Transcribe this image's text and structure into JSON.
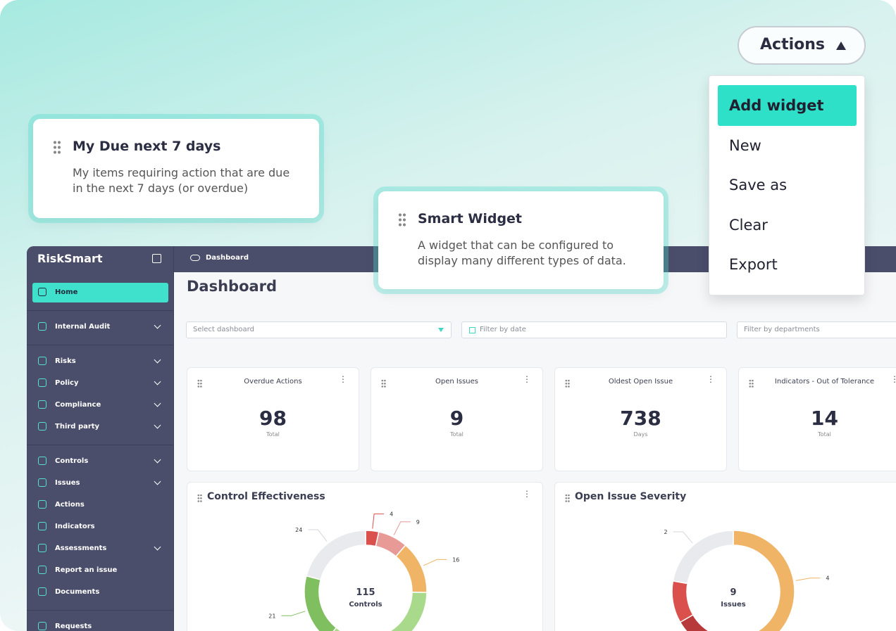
{
  "actions_button": "Actions",
  "actions_menu": {
    "items": [
      "Add widget",
      "New",
      "Save as",
      "Clear",
      "Export"
    ],
    "highlighted": 0
  },
  "widget_cards": [
    {
      "title": "My Due next 7 days",
      "description": "My items requiring action that are due in the next 7 days (or overdue)"
    },
    {
      "title": "Smart Widget",
      "description": "A widget that can be configured to display many different types of data."
    }
  ],
  "app": {
    "brand": "RiskSmart",
    "breadcrumb": "Dashboard",
    "page_title": "Dashboard",
    "nav": [
      [
        {
          "label": "Home",
          "active": true,
          "chevron": false
        }
      ],
      [
        {
          "label": "Internal Audit",
          "active": false,
          "chevron": true
        }
      ],
      [
        {
          "label": "Risks",
          "active": false,
          "chevron": true
        },
        {
          "label": "Policy",
          "active": false,
          "chevron": true
        },
        {
          "label": "Compliance",
          "active": false,
          "chevron": true
        },
        {
          "label": "Third party",
          "active": false,
          "chevron": true
        }
      ],
      [
        {
          "label": "Controls",
          "active": false,
          "chevron": true
        },
        {
          "label": "Issues",
          "active": false,
          "chevron": true
        },
        {
          "label": "Actions",
          "active": false,
          "chevron": false
        },
        {
          "label": "Indicators",
          "active": false,
          "chevron": false
        },
        {
          "label": "Assessments",
          "active": false,
          "chevron": true
        },
        {
          "label": "Report an issue",
          "active": false,
          "chevron": false
        },
        {
          "label": "Documents",
          "active": false,
          "chevron": false
        }
      ],
      [
        {
          "label": "Requests",
          "active": false,
          "chevron": false
        }
      ]
    ],
    "filters": [
      "Select dashboard",
      "Filter by date",
      "Filter by departments"
    ],
    "stat_cards": [
      {
        "title": "Overdue Actions",
        "value": 98,
        "unit": "Total"
      },
      {
        "title": "Open Issues",
        "value": 9,
        "unit": "Total"
      },
      {
        "title": "Oldest Open Issue",
        "value": 738,
        "unit": "Days"
      },
      {
        "title": "Indicators - Out of Tolerance",
        "value": 14,
        "unit": "Total"
      }
    ],
    "charts": [
      {
        "type": "donut",
        "title": "Control Effectiveness",
        "center_value": 115,
        "center_label": "Controls",
        "values": [
          4,
          9,
          16,
          41,
          21,
          24
        ],
        "value_labels": [
          "4",
          "9",
          "16",
          null,
          "21",
          "24"
        ],
        "colors": [
          "#d9504c",
          "#e89a96",
          "#f0b466",
          "#a9da8b",
          "#7fbf5f",
          "#e9eaed"
        ]
      },
      {
        "type": "donut",
        "title": "Open Issue Severity",
        "center_value": 9,
        "center_label": "Issues",
        "values": [
          4,
          2,
          1,
          2
        ],
        "value_labels": [
          "4",
          null,
          null,
          "2"
        ],
        "colors": [
          "#f0b466",
          "#b8393a",
          "#d9504c",
          "#e9eaed"
        ]
      }
    ]
  }
}
